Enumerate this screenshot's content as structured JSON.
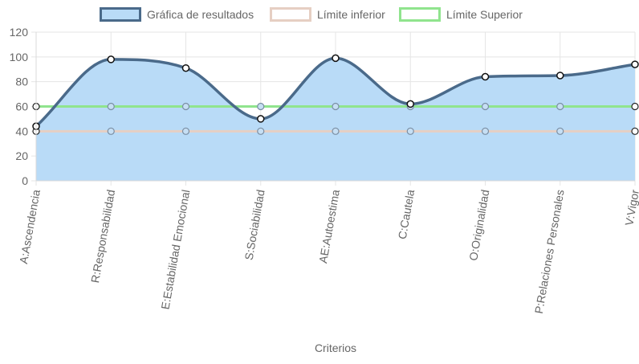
{
  "chart_data": {
    "type": "line",
    "title": "",
    "xlabel": "Criterios",
    "ylabel": "",
    "ylim": [
      0,
      120
    ],
    "yticks": [
      0,
      20,
      40,
      60,
      80,
      100,
      120
    ],
    "grid": true,
    "legend_position": "top",
    "categories": [
      "A:Ascendencia",
      "R:Responsabilidad",
      "E:Estabilidad Emocional",
      "S:Sociabilidad",
      "AE:Autoestima",
      "C:Cautela",
      "O:Originalidad",
      "P:Relaciones Personales",
      "V:Vigor"
    ],
    "series": [
      {
        "name": "Gráfica de resultados",
        "values": [
          44,
          98,
          91,
          50,
          99,
          62,
          84,
          85,
          94
        ],
        "line_color": "#4a6a8a",
        "fill_color": "#b9dbf7",
        "fill": true
      },
      {
        "name": "Límite inferior",
        "values": [
          40,
          40,
          40,
          40,
          40,
          40,
          40,
          40,
          40
        ],
        "line_color": "#e6cfc3",
        "fill": false
      },
      {
        "name": "Límite Superior",
        "values": [
          60,
          60,
          60,
          60,
          60,
          60,
          60,
          60,
          60
        ],
        "line_color": "#90e48e",
        "fill": false
      }
    ]
  }
}
